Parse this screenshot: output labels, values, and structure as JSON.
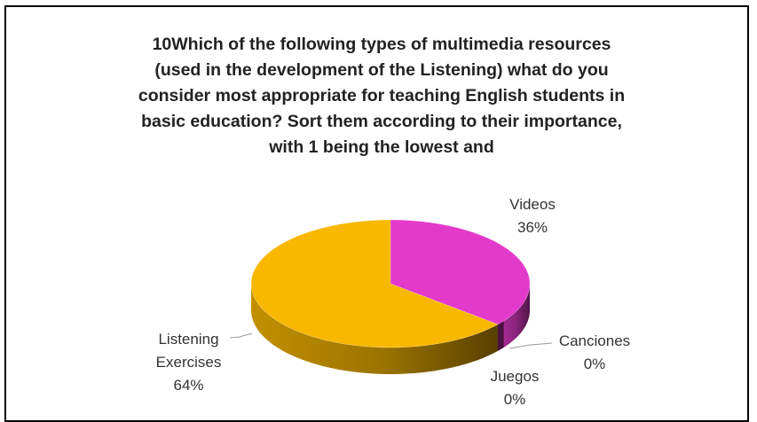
{
  "chart_data": {
    "type": "pie",
    "title": "10Which of the following types of multimedia resources (used in the development of the Listening) what do you consider most appropriate for teaching English students in basic education? Sort them according to their importance, with 1 being the lowest and",
    "title_lines": [
      "10Which of the following types of multimedia resources",
      "(used in the development of the Listening) what do you",
      "consider most appropriate for teaching English students in",
      "basic education? Sort them according to their importance,",
      "with 1 being the lowest and"
    ],
    "three_d": true,
    "slices": [
      {
        "name": "Videos",
        "value": 36,
        "label": "36%",
        "color": "#E43ACB"
      },
      {
        "name": "Canciones",
        "value": 0,
        "label": "0%",
        "color": "#7030A0"
      },
      {
        "name": "Juegos",
        "value": 0,
        "label": "0%",
        "color": "#4472C4"
      },
      {
        "name": "Listening Exercises",
        "value": 64,
        "label": "64%",
        "color": "#F9B800"
      }
    ],
    "label_text": {
      "videos": {
        "name": "Videos",
        "pct": "36%"
      },
      "canciones": {
        "name": "Canciones",
        "pct": "0%"
      },
      "juegos": {
        "name": "Juegos",
        "pct": "0%"
      },
      "listening": {
        "name1": "Listening",
        "name2": "Exercises",
        "pct": "64%"
      }
    }
  }
}
